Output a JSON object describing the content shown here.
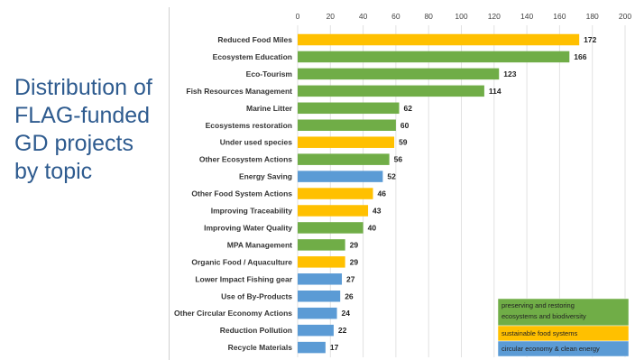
{
  "slide": {
    "title": "Distribution of FLAG-funded GD projects by topic"
  },
  "colors": {
    "green": "#70ad47",
    "yellow": "#ffc000",
    "blue": "#5b9bd5",
    "title": "#2e5b8f"
  },
  "chart_data": {
    "type": "bar",
    "orientation": "horizontal",
    "xlim": [
      0,
      200
    ],
    "ticks": [
      0,
      20,
      40,
      60,
      80,
      100,
      120,
      140,
      160,
      180,
      200
    ],
    "axis_position": "top",
    "grid": true,
    "legend_placement": "bottom-right",
    "categories": [
      "Reduced Food Miles",
      "Ecosystem Education",
      "Eco-Tourism",
      "Fish Resources Management",
      "Marine Litter",
      "Ecosystems restoration",
      "Under used species",
      "Other Ecosystem Actions",
      "Energy Saving",
      "Other Food System Actions",
      "Improving Traceability",
      "Improving Water Quality",
      "MPA Management",
      "Organic Food / Aquaculture",
      "Lower Impact Fishing gear",
      "Use of By-Products",
      "Other Circular Economy Actions",
      "Reduction Pollution",
      "Recycle Materials"
    ],
    "values": [
      172,
      166,
      123,
      114,
      62,
      60,
      59,
      56,
      52,
      46,
      43,
      40,
      29,
      29,
      27,
      26,
      24,
      22,
      17
    ],
    "groups": [
      "food",
      "eco",
      "eco",
      "eco",
      "eco",
      "eco",
      "food",
      "eco",
      "circ",
      "food",
      "food",
      "eco",
      "eco",
      "food",
      "circ",
      "circ",
      "circ",
      "circ",
      "circ"
    ],
    "legend": [
      {
        "key": "eco",
        "label": "preserving and restoring ecosystems and biodiversity",
        "color": "#70ad47"
      },
      {
        "key": "food",
        "label": "sustainable food systems",
        "color": "#ffc000"
      },
      {
        "key": "circ",
        "label": "circular economy & clean energy",
        "color": "#5b9bd5"
      }
    ]
  }
}
